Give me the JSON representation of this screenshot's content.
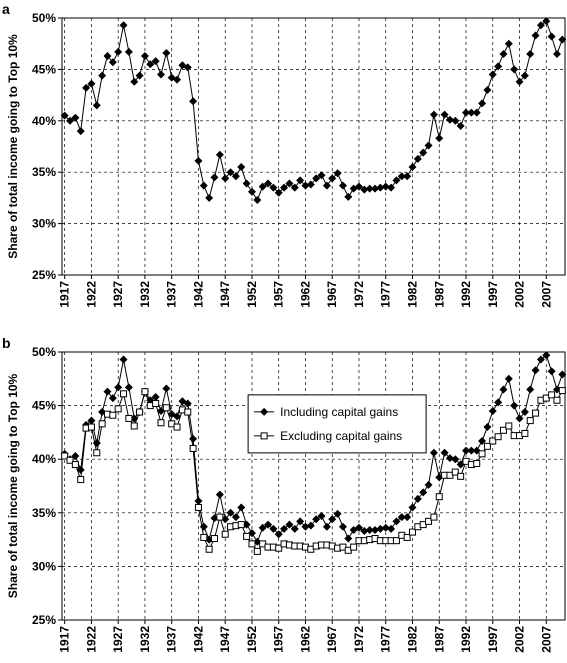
{
  "chart_data": [
    {
      "type": "line",
      "label": "a",
      "ylabel": "Share of total income going to Top 10%",
      "x": [
        1917,
        1918,
        1919,
        1920,
        1921,
        1922,
        1923,
        1924,
        1925,
        1926,
        1927,
        1928,
        1929,
        1930,
        1931,
        1932,
        1933,
        1934,
        1935,
        1936,
        1937,
        1938,
        1939,
        1940,
        1941,
        1942,
        1943,
        1944,
        1945,
        1946,
        1947,
        1948,
        1949,
        1950,
        1951,
        1952,
        1953,
        1954,
        1955,
        1956,
        1957,
        1958,
        1959,
        1960,
        1961,
        1962,
        1963,
        1964,
        1965,
        1966,
        1967,
        1968,
        1969,
        1970,
        1971,
        1972,
        1973,
        1974,
        1975,
        1976,
        1977,
        1978,
        1979,
        1980,
        1981,
        1982,
        1983,
        1984,
        1985,
        1986,
        1987,
        1988,
        1989,
        1990,
        1991,
        1992,
        1993,
        1994,
        1995,
        1996,
        1997,
        1998,
        1999,
        2000,
        2001,
        2002,
        2003,
        2004,
        2005,
        2006,
        2007,
        2008,
        2009,
        2010
      ],
      "series": [
        {
          "name": "Including capital gains",
          "color": "#000000",
          "marker": "diamond",
          "values": [
            40.5,
            40.0,
            40.3,
            39.0,
            43.2,
            43.6,
            41.5,
            44.4,
            46.3,
            45.7,
            46.7,
            49.3,
            46.7,
            43.8,
            44.4,
            46.3,
            45.5,
            45.8,
            44.5,
            46.6,
            44.2,
            44.0,
            45.4,
            45.2,
            41.9,
            36.1,
            33.7,
            32.5,
            34.5,
            36.7,
            34.4,
            35.0,
            34.6,
            35.5,
            33.9,
            33.1,
            32.3,
            33.6,
            33.9,
            33.5,
            33.0,
            33.5,
            33.9,
            33.5,
            34.2,
            33.7,
            33.8,
            34.4,
            34.7,
            33.7,
            34.4,
            34.9,
            33.7,
            32.6,
            33.4,
            33.6,
            33.3,
            33.4,
            33.4,
            33.5,
            33.6,
            33.5,
            34.2,
            34.6,
            34.6,
            35.5,
            36.3,
            36.9,
            37.6,
            40.6,
            38.3,
            40.6,
            40.1,
            40.0,
            39.5,
            40.8,
            40.8,
            40.8,
            41.7,
            43.0,
            44.5,
            45.3,
            46.5,
            47.5,
            45.0,
            43.8,
            44.4,
            46.5,
            48.3,
            49.3,
            49.7,
            48.2,
            46.5,
            47.9
          ]
        }
      ],
      "xlim": [
        1916.5,
        2010.5
      ],
      "xticks": [
        1917,
        1922,
        1927,
        1932,
        1937,
        1942,
        1947,
        1952,
        1957,
        1962,
        1967,
        1972,
        1977,
        1982,
        1987,
        1992,
        1997,
        2002,
        2007
      ],
      "ylim": [
        25,
        50
      ],
      "yticks": [
        {
          "value": 25,
          "label": "25%"
        },
        {
          "value": 30,
          "label": "30%"
        },
        {
          "value": 35,
          "label": "35%"
        },
        {
          "value": 40,
          "label": "40%"
        },
        {
          "value": 45,
          "label": "45%"
        },
        {
          "value": 50,
          "label": "50%"
        }
      ],
      "grid": true,
      "legend": false
    },
    {
      "type": "line",
      "label": "b",
      "ylabel": "Share of total income going to Top 10%",
      "x": [
        1917,
        1918,
        1919,
        1920,
        1921,
        1922,
        1923,
        1924,
        1925,
        1926,
        1927,
        1928,
        1929,
        1930,
        1931,
        1932,
        1933,
        1934,
        1935,
        1936,
        1937,
        1938,
        1939,
        1940,
        1941,
        1942,
        1943,
        1944,
        1945,
        1946,
        1947,
        1948,
        1949,
        1950,
        1951,
        1952,
        1953,
        1954,
        1955,
        1956,
        1957,
        1958,
        1959,
        1960,
        1961,
        1962,
        1963,
        1964,
        1965,
        1966,
        1967,
        1968,
        1969,
        1970,
        1971,
        1972,
        1973,
        1974,
        1975,
        1976,
        1977,
        1978,
        1979,
        1980,
        1981,
        1982,
        1983,
        1984,
        1985,
        1986,
        1987,
        1988,
        1989,
        1990,
        1991,
        1992,
        1993,
        1994,
        1995,
        1996,
        1997,
        1998,
        1999,
        2000,
        2001,
        2002,
        2003,
        2004,
        2005,
        2006,
        2007,
        2008,
        2009,
        2010
      ],
      "series": [
        {
          "name": "Including capital gains",
          "color": "#000000",
          "marker": "diamond",
          "values": [
            40.5,
            40.0,
            40.3,
            39.0,
            43.2,
            43.6,
            41.5,
            44.4,
            46.3,
            45.7,
            46.7,
            49.3,
            46.7,
            43.8,
            44.4,
            46.3,
            45.5,
            45.8,
            44.5,
            46.6,
            44.2,
            44.0,
            45.4,
            45.2,
            41.9,
            36.1,
            33.7,
            32.5,
            34.5,
            36.7,
            34.4,
            35.0,
            34.6,
            35.5,
            33.9,
            33.1,
            32.3,
            33.6,
            33.9,
            33.5,
            33.0,
            33.5,
            33.9,
            33.5,
            34.2,
            33.7,
            33.8,
            34.4,
            34.7,
            33.7,
            34.4,
            34.9,
            33.7,
            32.6,
            33.4,
            33.6,
            33.3,
            33.4,
            33.4,
            33.5,
            33.6,
            33.5,
            34.2,
            34.6,
            34.6,
            35.5,
            36.3,
            36.9,
            37.6,
            40.6,
            38.3,
            40.6,
            40.1,
            40.0,
            39.5,
            40.8,
            40.8,
            40.8,
            41.7,
            43.0,
            44.5,
            45.3,
            46.5,
            47.5,
            45.0,
            43.8,
            44.4,
            46.5,
            48.3,
            49.3,
            49.7,
            48.2,
            46.5,
            47.9
          ]
        },
        {
          "name": "Excluding capital gains",
          "color": "#000000",
          "marker": "square",
          "values": [
            40.3,
            39.9,
            39.5,
            38.1,
            42.9,
            43.0,
            40.6,
            43.3,
            44.2,
            44.1,
            44.7,
            46.1,
            43.8,
            43.1,
            44.4,
            46.3,
            45.0,
            45.2,
            43.4,
            44.8,
            43.3,
            43.0,
            44.6,
            44.4,
            41.0,
            35.5,
            32.7,
            31.6,
            32.6,
            34.6,
            33.0,
            33.7,
            33.8,
            33.9,
            32.8,
            32.1,
            31.4,
            32.1,
            31.8,
            31.8,
            31.7,
            32.1,
            32.0,
            31.9,
            31.9,
            31.8,
            31.6,
            31.9,
            32.0,
            32.0,
            31.9,
            31.7,
            31.8,
            31.5,
            31.8,
            32.4,
            32.4,
            32.5,
            32.6,
            32.4,
            32.4,
            32.4,
            32.4,
            32.9,
            32.7,
            33.2,
            33.7,
            33.9,
            34.2,
            34.6,
            36.5,
            38.5,
            38.5,
            38.8,
            38.4,
            39.8,
            39.5,
            39.6,
            40.5,
            41.2,
            41.7,
            42.1,
            42.7,
            43.1,
            42.2,
            42.2,
            42.4,
            43.6,
            44.3,
            45.5,
            45.7,
            46.0,
            45.5,
            46.4
          ]
        }
      ],
      "xlim": [
        1916.5,
        2010.5
      ],
      "xticks": [
        1917,
        1922,
        1927,
        1932,
        1937,
        1942,
        1947,
        1952,
        1957,
        1962,
        1967,
        1972,
        1977,
        1982,
        1987,
        1992,
        1997,
        2002,
        2007
      ],
      "ylim": [
        25,
        50
      ],
      "yticks": [
        {
          "value": 25,
          "label": "25%"
        },
        {
          "value": 30,
          "label": "30%"
        },
        {
          "value": 35,
          "label": "35%"
        },
        {
          "value": 40,
          "label": "40%"
        },
        {
          "value": 45,
          "label": "45%"
        },
        {
          "value": 50,
          "label": "50%"
        }
      ],
      "grid": true,
      "legend": "center"
    }
  ]
}
